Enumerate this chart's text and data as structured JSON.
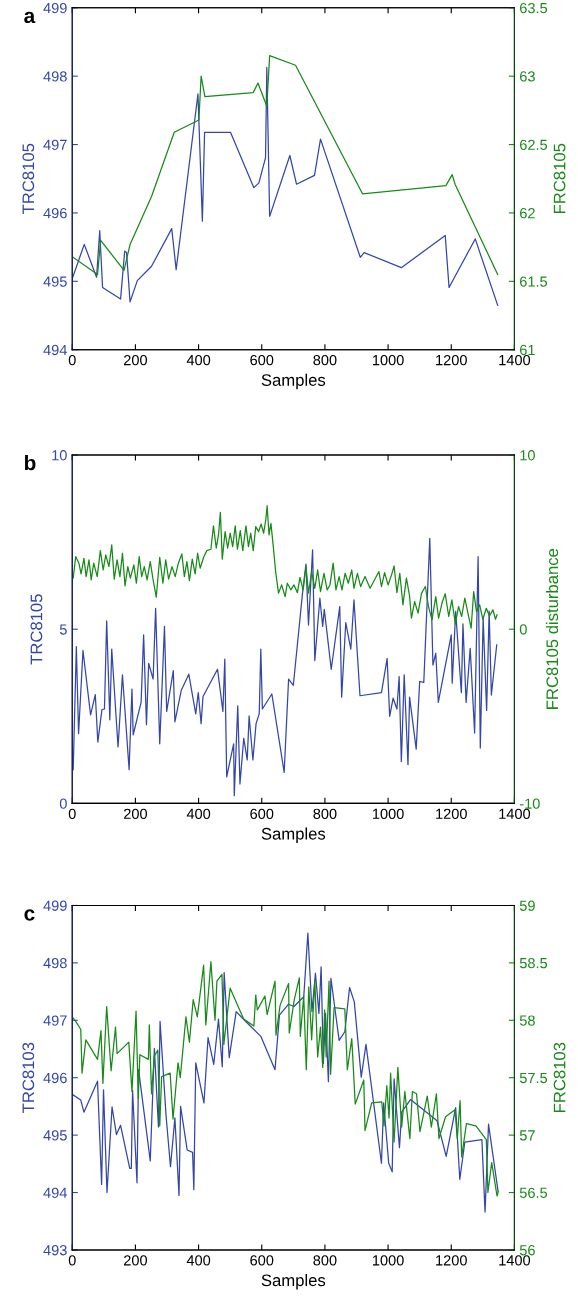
{
  "chart_data": [
    {
      "type": "line",
      "title": "a",
      "xlabel": "Samples",
      "ylabel": "TRC8105",
      "y2label": "FRC8105",
      "xlim": [
        0,
        1400
      ],
      "xticks": [
        0,
        200,
        400,
        600,
        800,
        1000,
        1200,
        1400
      ],
      "ylim": [
        494,
        499
      ],
      "yticks": [
        494,
        495,
        496,
        497,
        498,
        499
      ],
      "y2lim": [
        61,
        63.5
      ],
      "y2ticks": [
        61,
        61.5,
        62,
        62.5,
        63,
        63.5
      ],
      "grid": false,
      "series": [
        {
          "color": "#3446a8",
          "x": [
            0,
            38,
            77,
            87,
            96,
            153,
            166,
            172,
            183,
            206,
            251,
            315,
            329,
            398,
            412,
            419,
            501,
            575,
            591,
            612,
            616,
            625,
            689,
            710,
            767,
            786,
            912,
            924,
            1042,
            1181,
            1193,
            1276,
            1347
          ],
          "values": [
            495.04,
            495.54,
            495.06,
            495.74,
            494.91,
            494.74,
            495.44,
            495.42,
            494.7,
            495.01,
            495.22,
            495.77,
            495.17,
            497.74,
            495.88,
            497.18,
            497.18,
            496.37,
            496.44,
            496.81,
            498.13,
            495.95,
            496.84,
            496.42,
            496.55,
            497.08,
            495.35,
            495.42,
            495.2,
            495.67,
            494.91,
            495.62,
            494.65
          ]
        },
        {
          "color": "#178a17",
          "axis": "y2",
          "x": [
            0,
            80,
            90,
            164,
            183,
            251,
            323,
            401,
            408,
            420,
            573,
            588,
            616,
            625,
            707,
            919,
            1183,
            1203,
            1212,
            1347
          ],
          "values": [
            61.68,
            61.55,
            61.8,
            61.58,
            61.77,
            62.12,
            62.59,
            62.68,
            63.0,
            62.85,
            62.88,
            62.95,
            62.78,
            63.15,
            63.08,
            62.14,
            62.2,
            62.28,
            62.21,
            61.55
          ]
        }
      ]
    },
    {
      "type": "line",
      "title": "b",
      "xlabel": "Samples",
      "ylabel": "TRC8105",
      "y2label": "FRC8105 disturbance",
      "xlim": [
        0,
        1400
      ],
      "xticks": [
        0,
        200,
        400,
        600,
        800,
        1000,
        1200,
        1400
      ],
      "ylim": [
        0,
        10
      ],
      "yticks": [
        0,
        5,
        10
      ],
      "y2lim": [
        -10,
        10
      ],
      "y2ticks": [
        -10,
        0,
        10
      ],
      "grid": false,
      "series": [
        {
          "color": "#3446a8",
          "x": [
            3,
            13,
            20,
            34,
            58,
            73,
            81,
            94,
            102,
            109,
            119,
            125,
            145,
            159,
            180,
            189,
            193,
            218,
            226,
            235,
            242,
            256,
            264,
            277,
            292,
            299,
            320,
            325,
            345,
            369,
            391,
            399,
            408,
            414,
            460,
            477,
            483,
            489,
            511,
            513,
            524,
            531,
            543,
            554,
            560,
            572,
            582,
            592,
            597,
            602,
            632,
            671,
            685,
            700,
            729,
            740,
            748,
            761,
            768,
            784,
            793,
            798,
            820,
            847,
            853,
            866,
            882,
            892,
            911,
            979,
            997,
            1005,
            1016,
            1028,
            1035,
            1042,
            1051,
            1063,
            1068,
            1089,
            1100,
            1113,
            1132,
            1142,
            1151,
            1159,
            1200,
            1203,
            1214,
            1232,
            1237,
            1247,
            1260,
            1274,
            1285,
            1292,
            1301,
            1312,
            1320,
            1327,
            1344
          ],
          "values": [
            0.97,
            4.5,
            2.0,
            4.39,
            2.54,
            3.12,
            1.76,
            2.69,
            2.71,
            5.24,
            2.4,
            4.43,
            1.62,
            3.69,
            0.97,
            3.28,
            1.97,
            2.9,
            4.84,
            2.26,
            4.02,
            3.57,
            5.6,
            1.71,
            5.08,
            2.64,
            3.81,
            2.34,
            3.24,
            3.71,
            2.57,
            3.18,
            2.29,
            3.07,
            3.85,
            2.64,
            4.14,
            0.76,
            1.71,
            0.22,
            2.8,
            0.56,
            1.87,
            1.25,
            2.51,
            1.25,
            2.29,
            2.57,
            4.43,
            2.71,
            3.14,
            0.89,
            3.57,
            3.39,
            6.03,
            6.87,
            5.12,
            7.28,
            4.1,
            5.89,
            5.08,
            5.57,
            3.85,
            5.65,
            3.05,
            5.19,
            4.43,
            5.84,
            3.09,
            3.18,
            4.16,
            2.5,
            3.02,
            2.71,
            3.64,
            1.2,
            3.69,
            1.11,
            3.05,
            1.56,
            3.5,
            3.47,
            7.61,
            3.97,
            4.31,
            2.9,
            4.84,
            3.45,
            5.51,
            3.18,
            5.15,
            2.9,
            4.45,
            2.02,
            7.08,
            1.59,
            5.31,
            2.67,
            5.52,
            3.11,
            4.55
          ]
        },
        {
          "color": "#178a17",
          "axis": "y2",
          "x": [
            3,
            11,
            21,
            28,
            37,
            44,
            53,
            60,
            68,
            79,
            89,
            98,
            106,
            116,
            125,
            133,
            142,
            151,
            159,
            167,
            176,
            184,
            195,
            203,
            212,
            220,
            228,
            237,
            247,
            256,
            266,
            277,
            287,
            296,
            305,
            316,
            326,
            336,
            347,
            355,
            363,
            371,
            380,
            389,
            397,
            405,
            416,
            426,
            439,
            447,
            456,
            463,
            469,
            475,
            484,
            492,
            500,
            508,
            516,
            523,
            532,
            540,
            550,
            558,
            565,
            573,
            581,
            590,
            598,
            606,
            613,
            617,
            623,
            629,
            636,
            644,
            653,
            663,
            674,
            681,
            692,
            702,
            713,
            721,
            731,
            740,
            748,
            758,
            768,
            777,
            786,
            797,
            807,
            816,
            826,
            835,
            845,
            854,
            864,
            874,
            885,
            892,
            903,
            913,
            927,
            943,
            958,
            971,
            979,
            989,
            1000,
            1011,
            1019,
            1028,
            1037,
            1047,
            1058,
            1068,
            1074,
            1084,
            1095,
            1106,
            1118,
            1128,
            1139,
            1151,
            1160,
            1171,
            1181,
            1192,
            1202,
            1213,
            1223,
            1233,
            1243,
            1254,
            1263,
            1271,
            1280,
            1290,
            1300,
            1311,
            1321,
            1332,
            1340,
            1345
          ],
          "values": [
            2.93,
            4.17,
            3.79,
            3.17,
            4.07,
            3.02,
            3.98,
            2.83,
            3.79,
            3.02,
            4.51,
            3.4,
            4.26,
            3.59,
            4.84,
            2.87,
            3.98,
            3.02,
            4.36,
            2.49,
            3.59,
            2.93,
            3.69,
            2.64,
            4.17,
            3.02,
            3.59,
            2.83,
            3.88,
            2.83,
            1.84,
            4.13,
            2.64,
            3.98,
            2.87,
            3.59,
            3.02,
            3.79,
            4.32,
            3.02,
            3.88,
            2.79,
            4.02,
            3.17,
            4.36,
            3.5,
            4.13,
            4.51,
            4.59,
            5.93,
            4.65,
            5.41,
            6.71,
            4.02,
            5.6,
            4.65,
            5.51,
            4.74,
            5.93,
            4.59,
            5.66,
            4.51,
            5.93,
            4.74,
            5.51,
            4.51,
            5.89,
            5.6,
            6.04,
            5.51,
            6.31,
            7.09,
            5.41,
            6.08,
            4.84,
            3.31,
            2.07,
            2.54,
            1.87,
            2.64,
            2.26,
            2.54,
            2.1,
            2.98,
            2.26,
            3.59,
            2.07,
            3.31,
            2.35,
            3.4,
            2.16,
            3.21,
            2.26,
            2.54,
            3.79,
            2.26,
            3.02,
            2.26,
            3.21,
            2.64,
            3.4,
            2.35,
            3.21,
            2.45,
            3.02,
            2.35,
            2.87,
            3.31,
            2.45,
            3.25,
            2.54,
            3.12,
            3.63,
            2.1,
            3.21,
            1.4,
            2.93,
            1.91,
            0.63,
            1.59,
            0.92,
            2.07,
            2.45,
            1.3,
            0.54,
            1.87,
            0.63,
            1.53,
            2.03,
            0.73,
            1.68,
            0.31,
            1.3,
            0.73,
            1.78,
            0.82,
            0.06,
            2.16,
            1.01,
            1.4,
            0.57,
            1.2,
            0.76,
            1.11,
            0.57,
            0.82
          ]
        }
      ]
    },
    {
      "type": "line",
      "title": "c",
      "xlabel": "Samples",
      "ylabel": "TRC8103",
      "y2label": "FRC8103",
      "xlim": [
        0,
        1400
      ],
      "xticks": [
        0,
        200,
        400,
        600,
        800,
        1000,
        1200,
        1400
      ],
      "ylim": [
        493,
        499
      ],
      "yticks": [
        493,
        494,
        495,
        496,
        497,
        498,
        499
      ],
      "y2lim": [
        56,
        59
      ],
      "y2ticks": [
        56,
        56.5,
        57,
        57.5,
        58,
        58.5,
        59
      ],
      "grid": false,
      "series": [
        {
          "color": "#3446a8",
          "x": [
            0,
            27,
            37,
            80,
            93,
            99,
            110,
            126,
            140,
            153,
            182,
            187,
            191,
            205,
            210,
            247,
            260,
            273,
            278,
            297,
            311,
            325,
            338,
            343,
            364,
            381,
            385,
            391,
            417,
            430,
            448,
            463,
            475,
            481,
            497,
            519,
            551,
            597,
            642,
            656,
            685,
            702,
            733,
            746,
            759,
            770,
            781,
            788,
            795,
            802,
            811,
            819,
            845,
            863,
            878,
            893,
            915,
            930,
            979,
            986,
            1002,
            1013,
            1019,
            1036,
            1043,
            1071,
            1155,
            1184,
            1214,
            1227,
            1243,
            1297,
            1307,
            1318,
            1348
          ],
          "values": [
            495.71,
            495.61,
            495.4,
            495.94,
            494.14,
            495.79,
            494.0,
            495.49,
            495.01,
            495.17,
            494.42,
            494.42,
            495.78,
            494.17,
            496.14,
            494.55,
            496.51,
            495.14,
            496.98,
            495.34,
            494.45,
            495.3,
            493.95,
            495.5,
            494.74,
            494.7,
            494.05,
            496.26,
            495.56,
            496.7,
            496.23,
            497.02,
            496.19,
            497.83,
            496.35,
            497.15,
            496.97,
            496.72,
            496.14,
            497.09,
            497.28,
            497.24,
            497.41,
            498.52,
            497.15,
            497.82,
            497.12,
            497.93,
            496.25,
            497.12,
            495.93,
            497.73,
            496.65,
            496.8,
            497.57,
            497.32,
            496.01,
            496.58,
            494.51,
            495.56,
            494.51,
            494.36,
            495.98,
            494.78,
            495.4,
            495.62,
            495.25,
            494.63,
            495.48,
            494.23,
            494.88,
            494.92,
            493.66,
            495.19,
            494.03
          ]
        },
        {
          "color": "#178a17",
          "axis": "y2",
          "x": [
            0,
            11,
            27,
            31,
            43,
            80,
            91,
            97,
            109,
            123,
            137,
            142,
            179,
            189,
            202,
            209,
            214,
            241,
            244,
            251,
            260,
            271,
            277,
            283,
            310,
            319,
            335,
            342,
            360,
            371,
            383,
            396,
            416,
            423,
            439,
            452,
            458,
            474,
            480,
            500,
            527,
            543,
            575,
            581,
            586,
            610,
            617,
            642,
            645,
            658,
            685,
            687,
            703,
            719,
            722,
            733,
            741,
            749,
            758,
            768,
            777,
            786,
            793,
            799,
            804,
            813,
            818,
            829,
            863,
            871,
            885,
            896,
            923,
            927,
            948,
            980,
            987,
            996,
            1003,
            1008,
            1019,
            1031,
            1043,
            1053,
            1069,
            1077,
            1090,
            1101,
            1124,
            1137,
            1153,
            1161,
            1182,
            1212,
            1219,
            1228,
            1233,
            1248,
            1278,
            1311,
            1316,
            1328,
            1345,
            1349
          ],
          "values": [
            58.03,
            57.99,
            57.92,
            57.54,
            57.83,
            57.66,
            57.91,
            57.45,
            58.12,
            57.56,
            57.94,
            57.71,
            57.81,
            57.38,
            58.08,
            57.32,
            57.7,
            57.66,
            57.96,
            57.36,
            57.69,
            57.74,
            57.08,
            57.51,
            57.54,
            57.14,
            57.63,
            57.5,
            58.03,
            57.81,
            58.18,
            58.03,
            58.48,
            57.96,
            58.51,
            58.0,
            58.34,
            58.4,
            57.79,
            58.28,
            58.11,
            58.01,
            57.95,
            58.22,
            58.09,
            58.21,
            58.05,
            58.34,
            57.87,
            58.13,
            58.32,
            57.89,
            58.18,
            58.37,
            57.86,
            58.21,
            57.57,
            58.29,
            57.83,
            58.35,
            57.68,
            57.94,
            57.59,
            58.09,
            57.68,
            58.34,
            57.53,
            58.11,
            58.1,
            57.57,
            57.84,
            57.27,
            57.48,
            57.04,
            57.28,
            57.29,
            57.08,
            57.43,
            57.15,
            57.54,
            56.94,
            57.59,
            57.07,
            57.38,
            56.97,
            57.38,
            57.36,
            57.03,
            57.34,
            57.07,
            57.36,
            56.97,
            57.16,
            57.22,
            56.97,
            57.3,
            56.81,
            57.1,
            57.08,
            56.96,
            56.5,
            56.76,
            56.47,
            56.51
          ]
        }
      ]
    }
  ]
}
